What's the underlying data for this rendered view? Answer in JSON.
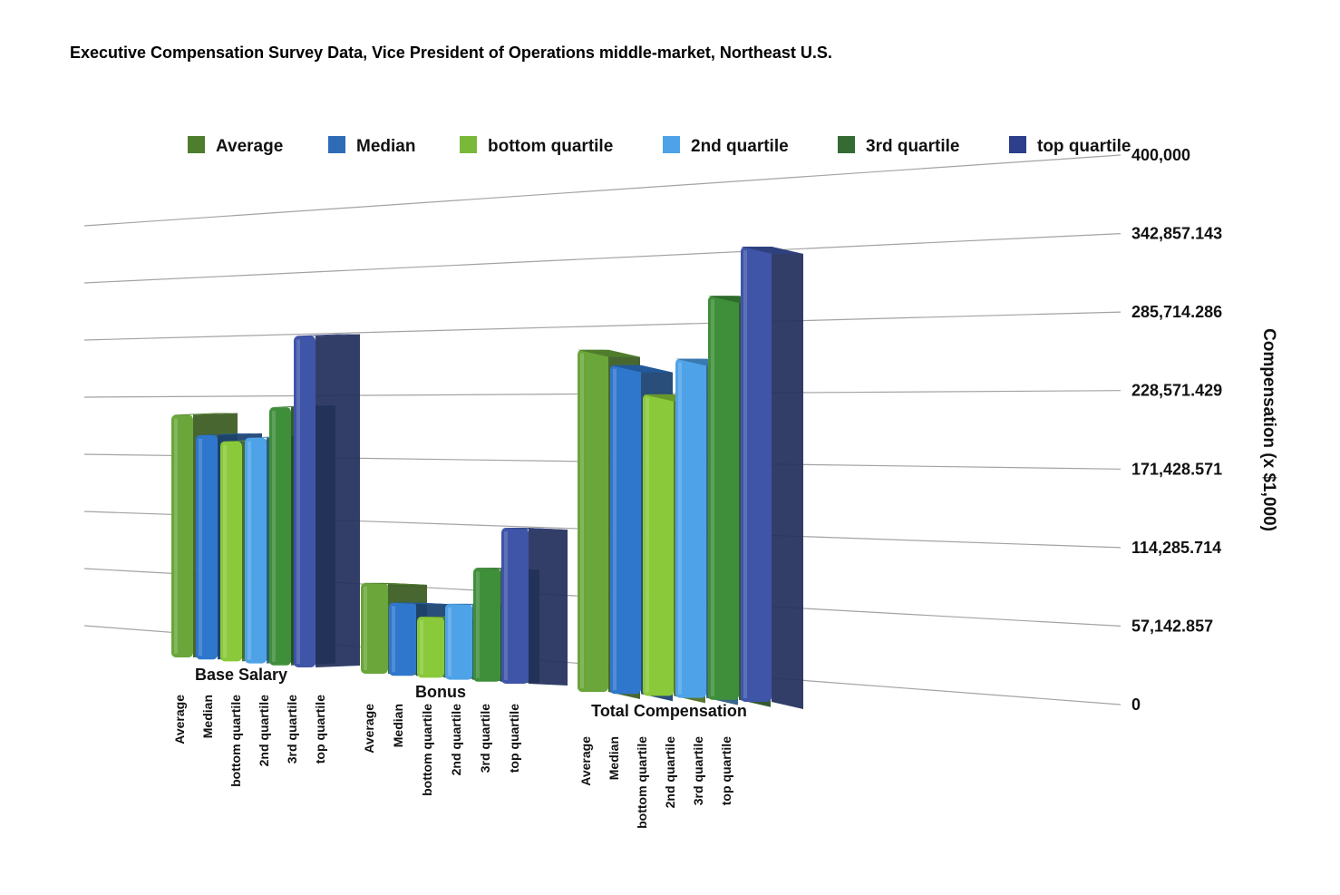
{
  "chart_data": {
    "type": "bar",
    "title": "Executive Compensation Survey Data, Vice President of Operations middle-market, Northeast U.S.",
    "xlabel": "",
    "ylabel": "Compensation (x $1,000)",
    "ylim": [
      0,
      400000
    ],
    "y_ticks": [
      "0",
      "57,142.857",
      "114,285.714",
      "171,428.571",
      "228,571.429",
      "285,714.286",
      "342,857.143",
      "400,000"
    ],
    "categories": [
      "Base Salary",
      "Bonus",
      "Total Compensation"
    ],
    "grid": true,
    "legend_position": "top",
    "series": [
      {
        "name": "Average",
        "values": [
          172000,
          67000,
          227000
        ],
        "color": "#6aa63a"
      },
      {
        "name": "Median",
        "values": [
          159000,
          54000,
          218000
        ],
        "color": "#2f77cc"
      },
      {
        "name": "bottom quartile",
        "values": [
          156000,
          45000,
          200000
        ],
        "color": "#8ac93a"
      },
      {
        "name": "2nd quartile",
        "values": [
          160000,
          56000,
          225000
        ],
        "color": "#4ea3e8"
      },
      {
        "name": "3rd quartile",
        "values": [
          183000,
          84000,
          268000
        ],
        "color": "#3f8f3a"
      },
      {
        "name": "top quartile",
        "values": [
          235000,
          115000,
          302000
        ],
        "color": "#3e55a8"
      }
    ],
    "legend_colors": [
      "#4e7d2e",
      "#2f6cb8",
      "#7ab83a",
      "#4ea3e8",
      "#356b33",
      "#2c3e8c"
    ]
  }
}
